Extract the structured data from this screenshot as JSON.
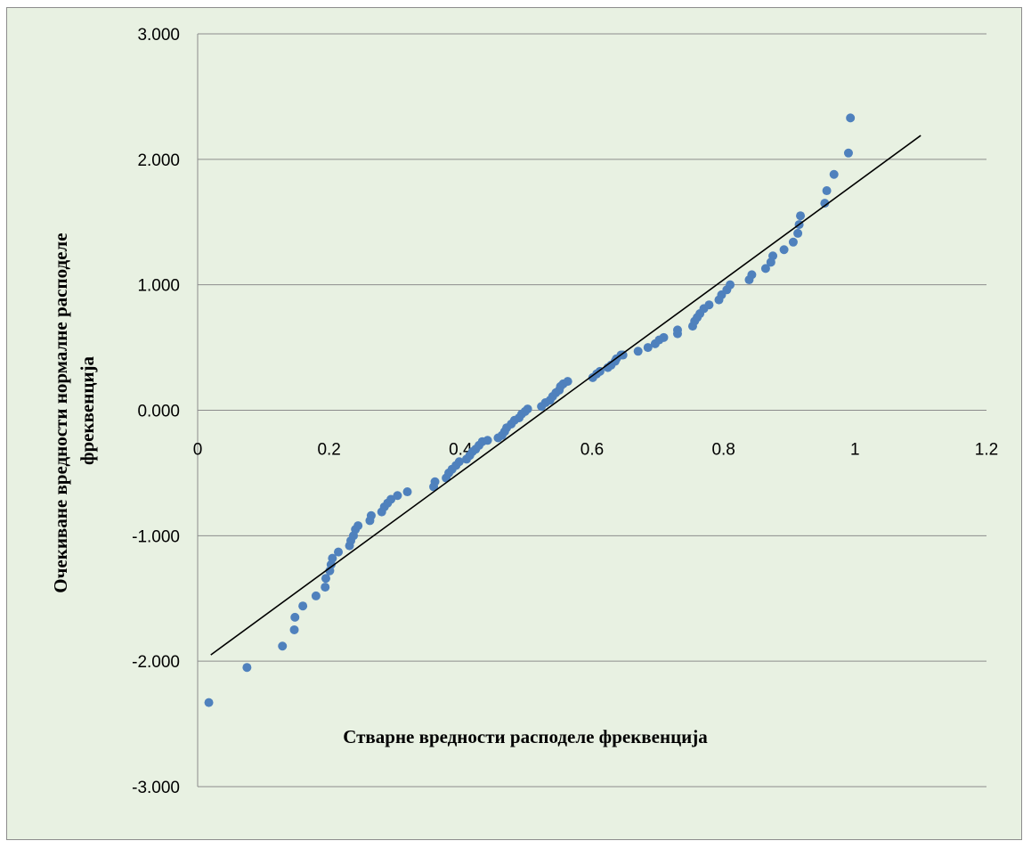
{
  "chart_data": {
    "type": "scatter",
    "title": "",
    "xlabel": "Стварне вредности расподеле фреквенција",
    "ylabel_lines": [
      "Очекиване вредности нормалне расподеле",
      "фреквенција"
    ],
    "xlim": [
      0,
      1.2
    ],
    "ylim": [
      -3,
      3
    ],
    "x_ticks": [
      0,
      0.2,
      0.4,
      0.6,
      0.8,
      1,
      1.2
    ],
    "x_tick_labels": [
      "0",
      "0.2",
      "0.4",
      "0.6",
      "0.8",
      "1",
      "1.2"
    ],
    "y_ticks": [
      3,
      2,
      1,
      0,
      -1,
      -2,
      -3
    ],
    "y_tick_labels": [
      "3.000",
      "2.000",
      "1.000",
      "0.000",
      "-1.000",
      "-2.000",
      "-3.000"
    ],
    "grid": "horizontal",
    "legend": "none",
    "marker_color": "#4f81bd",
    "trendline": {
      "x": [
        0.02,
        1.1
      ],
      "y": [
        -1.95,
        2.19
      ],
      "color": "#000000"
    },
    "points": [
      [
        0.017,
        -2.33
      ],
      [
        0.075,
        -2.05
      ],
      [
        0.129,
        -1.88
      ],
      [
        0.147,
        -1.75
      ],
      [
        0.148,
        -1.65
      ],
      [
        0.16,
        -1.56
      ],
      [
        0.18,
        -1.48
      ],
      [
        0.194,
        -1.41
      ],
      [
        0.195,
        -1.34
      ],
      [
        0.201,
        -1.28
      ],
      [
        0.203,
        -1.23
      ],
      [
        0.205,
        -1.18
      ],
      [
        0.214,
        -1.13
      ],
      [
        0.231,
        -1.08
      ],
      [
        0.233,
        -1.04
      ],
      [
        0.237,
        -1.0
      ],
      [
        0.24,
        -0.95
      ],
      [
        0.244,
        -0.92
      ],
      [
        0.262,
        -0.88
      ],
      [
        0.264,
        -0.84
      ],
      [
        0.28,
        -0.81
      ],
      [
        0.284,
        -0.77
      ],
      [
        0.289,
        -0.74
      ],
      [
        0.294,
        -0.71
      ],
      [
        0.304,
        -0.68
      ],
      [
        0.319,
        -0.65
      ],
      [
        0.359,
        -0.61
      ],
      [
        0.361,
        -0.57
      ],
      [
        0.378,
        -0.54
      ],
      [
        0.382,
        -0.5
      ],
      [
        0.387,
        -0.47
      ],
      [
        0.393,
        -0.44
      ],
      [
        0.398,
        -0.41
      ],
      [
        0.409,
        -0.39
      ],
      [
        0.414,
        -0.36
      ],
      [
        0.418,
        -0.33
      ],
      [
        0.423,
        -0.31
      ],
      [
        0.428,
        -0.28
      ],
      [
        0.433,
        -0.25
      ],
      [
        0.441,
        -0.24
      ],
      [
        0.457,
        -0.22
      ],
      [
        0.463,
        -0.2
      ],
      [
        0.467,
        -0.17
      ],
      [
        0.47,
        -0.14
      ],
      [
        0.477,
        -0.11
      ],
      [
        0.482,
        -0.08
      ],
      [
        0.489,
        -0.06
      ],
      [
        0.493,
        -0.03
      ],
      [
        0.498,
        -0.01
      ],
      [
        0.502,
        0.01
      ],
      [
        0.523,
        0.03
      ],
      [
        0.529,
        0.06
      ],
      [
        0.536,
        0.08
      ],
      [
        0.54,
        0.11
      ],
      [
        0.545,
        0.14
      ],
      [
        0.55,
        0.16
      ],
      [
        0.552,
        0.19
      ],
      [
        0.556,
        0.21
      ],
      [
        0.563,
        0.23
      ],
      [
        0.601,
        0.26
      ],
      [
        0.607,
        0.29
      ],
      [
        0.612,
        0.31
      ],
      [
        0.624,
        0.34
      ],
      [
        0.629,
        0.36
      ],
      [
        0.635,
        0.39
      ],
      [
        0.637,
        0.41
      ],
      [
        0.644,
        0.44
      ],
      [
        0.647,
        0.44
      ],
      [
        0.67,
        0.47
      ],
      [
        0.685,
        0.5
      ],
      [
        0.696,
        0.53
      ],
      [
        0.702,
        0.56
      ],
      [
        0.709,
        0.58
      ],
      [
        0.73,
        0.61
      ],
      [
        0.73,
        0.64
      ],
      [
        0.753,
        0.67
      ],
      [
        0.756,
        0.71
      ],
      [
        0.76,
        0.74
      ],
      [
        0.764,
        0.77
      ],
      [
        0.77,
        0.81
      ],
      [
        0.778,
        0.84
      ],
      [
        0.793,
        0.88
      ],
      [
        0.797,
        0.92
      ],
      [
        0.805,
        0.96
      ],
      [
        0.81,
        1.0
      ],
      [
        0.839,
        1.04
      ],
      [
        0.843,
        1.08
      ],
      [
        0.864,
        1.13
      ],
      [
        0.872,
        1.18
      ],
      [
        0.875,
        1.23
      ],
      [
        0.892,
        1.28
      ],
      [
        0.906,
        1.34
      ],
      [
        0.913,
        1.41
      ],
      [
        0.915,
        1.48
      ],
      [
        0.917,
        1.55
      ],
      [
        0.954,
        1.65
      ],
      [
        0.957,
        1.75
      ],
      [
        0.968,
        1.88
      ],
      [
        0.99,
        2.05
      ],
      [
        0.993,
        2.33
      ]
    ]
  }
}
